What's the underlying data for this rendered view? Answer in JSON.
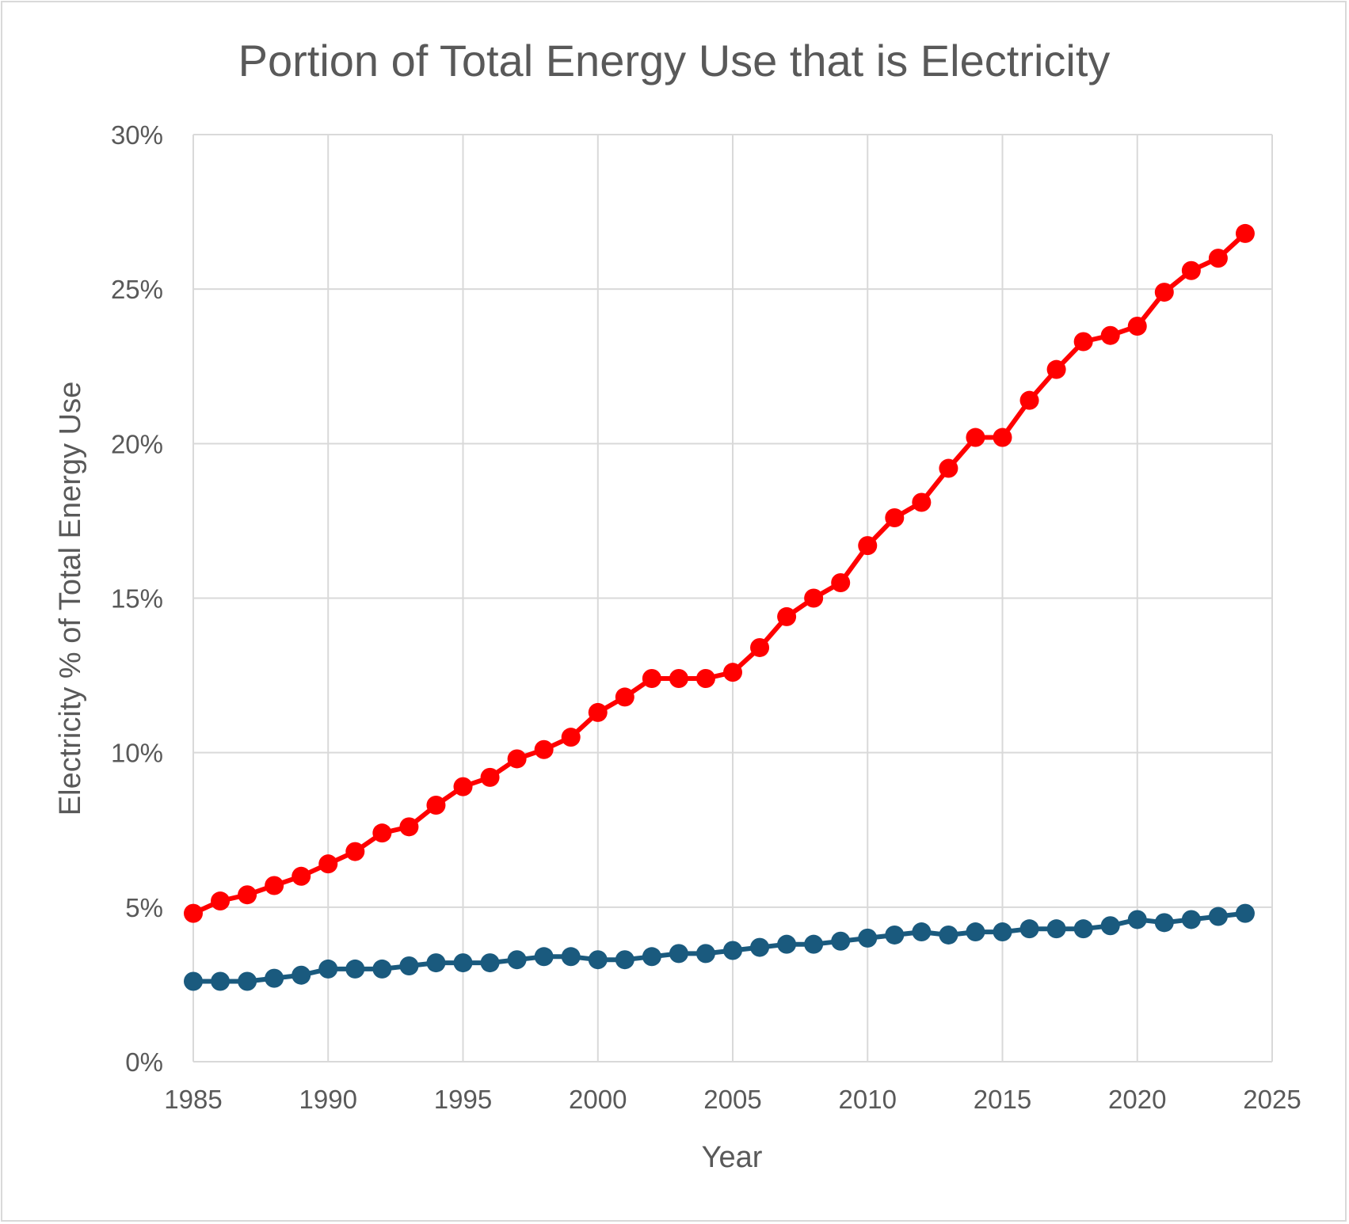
{
  "chart_data": {
    "type": "line",
    "title": "Portion of Total Energy Use that is Electricity",
    "xlabel": "Year",
    "ylabel": "Electricity % of Total Energy Use",
    "xlim": [
      1985,
      2025
    ],
    "ylim": [
      0,
      30
    ],
    "x_ticks": [
      "1985",
      "1990",
      "1995",
      "2000",
      "2005",
      "2010",
      "2015",
      "2020",
      "2025"
    ],
    "y_ticks": [
      "0%",
      "5%",
      "10%",
      "15%",
      "20%",
      "25%",
      "30%"
    ],
    "grid": true,
    "legend": "none",
    "x": [
      1985,
      1986,
      1987,
      1988,
      1989,
      1990,
      1991,
      1992,
      1993,
      1994,
      1995,
      1996,
      1997,
      1998,
      1999,
      2000,
      2001,
      2002,
      2003,
      2004,
      2005,
      2006,
      2007,
      2008,
      2009,
      2010,
      2011,
      2012,
      2013,
      2014,
      2015,
      2016,
      2017,
      2018,
      2019,
      2020,
      2021,
      2022,
      2023,
      2024
    ],
    "series": [
      {
        "color": "#ff0000",
        "values": [
          4.8,
          5.2,
          5.4,
          5.7,
          6.0,
          6.4,
          6.8,
          7.4,
          7.6,
          8.3,
          8.9,
          9.2,
          9.8,
          10.1,
          10.5,
          11.3,
          11.8,
          12.4,
          12.4,
          12.4,
          12.6,
          13.4,
          14.4,
          15.0,
          15.5,
          16.7,
          17.6,
          18.1,
          19.2,
          20.2,
          20.2,
          21.4,
          22.4,
          23.3,
          23.5,
          23.8,
          24.9,
          25.6,
          26.0,
          26.8
        ]
      },
      {
        "color": "#1a5a7e",
        "values": [
          2.6,
          2.6,
          2.6,
          2.7,
          2.8,
          3.0,
          3.0,
          3.0,
          3.1,
          3.2,
          3.2,
          3.2,
          3.3,
          3.4,
          3.4,
          3.3,
          3.3,
          3.4,
          3.5,
          3.5,
          3.6,
          3.7,
          3.8,
          3.8,
          3.9,
          4.0,
          4.1,
          4.2,
          4.1,
          4.2,
          4.2,
          4.3,
          4.3,
          4.3,
          4.4,
          4.6,
          4.5,
          4.6,
          4.7,
          4.8
        ]
      }
    ]
  }
}
